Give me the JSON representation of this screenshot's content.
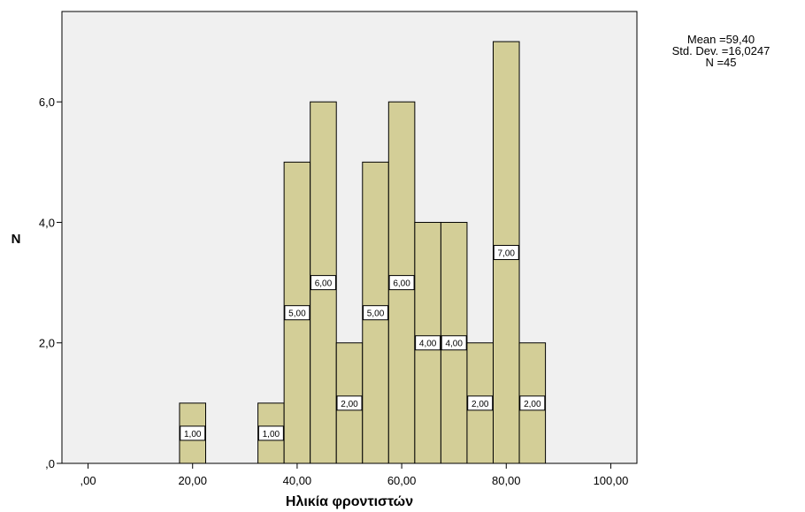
{
  "chart_data": {
    "type": "bar",
    "subtype": "histogram",
    "title": "",
    "xlabel": "Ηλικία φροντιστών",
    "ylabel": "N",
    "xlim": [
      -5,
      105
    ],
    "ylim": [
      0,
      7.5
    ],
    "x_ticks": [
      0,
      20,
      40,
      60,
      80,
      100
    ],
    "x_tick_labels": [
      ",00",
      "20,00",
      "40,00",
      "60,00",
      "80,00",
      "100,00"
    ],
    "y_ticks": [
      0,
      2,
      4,
      6
    ],
    "y_tick_labels": [
      ",0",
      "2,0",
      "4,0",
      "6,0"
    ],
    "bin_width": 5,
    "bins": [
      {
        "x0": 17.5,
        "x1": 22.5,
        "value": 1,
        "label": "1,00"
      },
      {
        "x0": 32.5,
        "x1": 37.5,
        "value": 1,
        "label": "1,00"
      },
      {
        "x0": 37.5,
        "x1": 42.5,
        "value": 5,
        "label": "5,00"
      },
      {
        "x0": 42.5,
        "x1": 47.5,
        "value": 6,
        "label": "6,00"
      },
      {
        "x0": 47.5,
        "x1": 52.5,
        "value": 2,
        "label": "2,00"
      },
      {
        "x0": 52.5,
        "x1": 57.5,
        "value": 5,
        "label": "5,00"
      },
      {
        "x0": 57.5,
        "x1": 62.5,
        "value": 6,
        "label": "6,00"
      },
      {
        "x0": 62.5,
        "x1": 67.5,
        "value": 4,
        "label": "4,00"
      },
      {
        "x0": 67.5,
        "x1": 72.5,
        "value": 4,
        "label": "4,00"
      },
      {
        "x0": 72.5,
        "x1": 77.5,
        "value": 2,
        "label": "2,00"
      },
      {
        "x0": 77.5,
        "x1": 82.5,
        "value": 7,
        "label": "7,00"
      },
      {
        "x0": 82.5,
        "x1": 87.5,
        "value": 2,
        "label": "2,00"
      }
    ],
    "grid": false,
    "colors": {
      "bar_fill": "#d3ce97",
      "bar_stroke": "#000000",
      "plot_background": "#f0f0f0",
      "label_box": "#ffffff"
    }
  },
  "stats": {
    "mean": "Mean =59,40",
    "std": "Std. Dev. =16,0247",
    "n": "N =45"
  }
}
